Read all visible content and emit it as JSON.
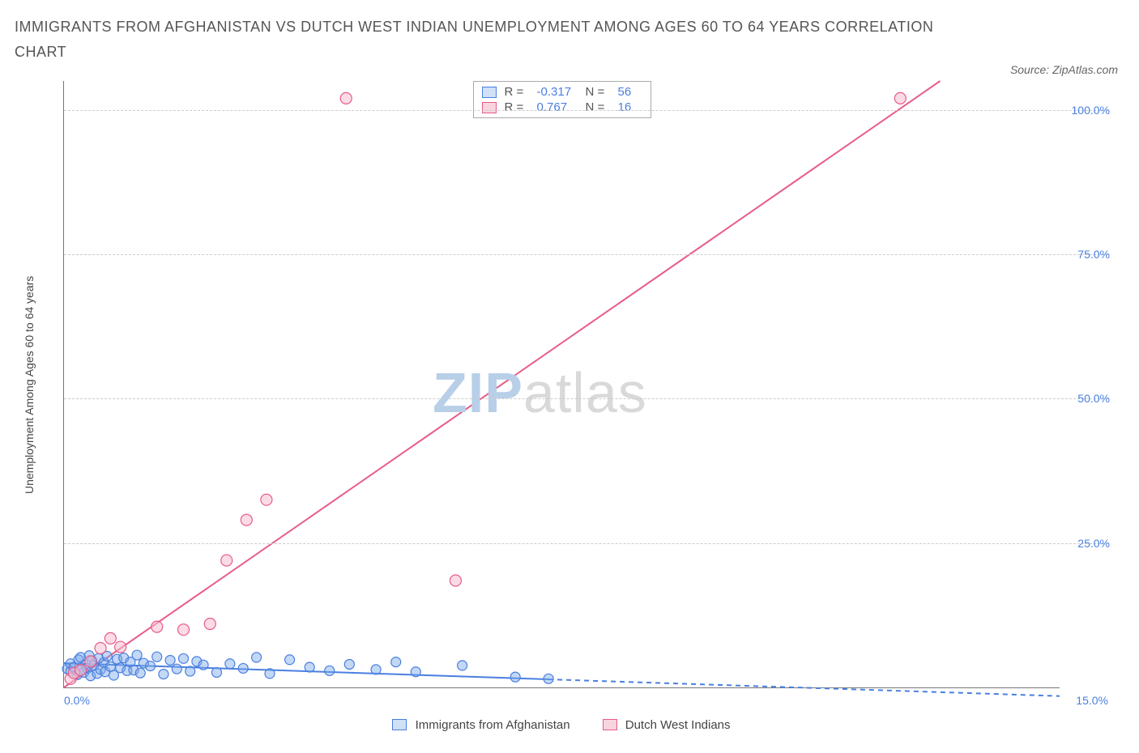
{
  "title": "IMMIGRANTS FROM AFGHANISTAN VS DUTCH WEST INDIAN UNEMPLOYMENT AMONG AGES 60 TO 64 YEARS CORRELATION CHART",
  "source_label": "Source: ZipAtlas.com",
  "y_axis_label": "Unemployment Among Ages 60 to 64 years",
  "watermark": {
    "part1": "ZIP",
    "part2": "atlas"
  },
  "chart": {
    "type": "scatter",
    "background_color": "#ffffff",
    "grid_color": "#cccccc",
    "axis_color": "#777777",
    "tick_label_color": "#4a7fe0",
    "xlim": [
      0,
      15
    ],
    "ylim": [
      0,
      105
    ],
    "x_tick_left": "0.0%",
    "x_tick_right": "15.0%",
    "y_right_ticks": [
      {
        "value": 25,
        "label": "25.0%"
      },
      {
        "value": 50,
        "label": "50.0%"
      },
      {
        "value": 75,
        "label": "75.0%"
      },
      {
        "value": 100,
        "label": "100.0%"
      }
    ],
    "legend_top": {
      "r_label": "R =",
      "n_label": "N =",
      "rows": [
        {
          "fill": "#cfe0f7",
          "border": "#4a7fe0",
          "r": "-0.317",
          "n": "56"
        },
        {
          "fill": "#f8d4de",
          "border": "#e85b8a",
          "r": "0.767",
          "n": "16"
        }
      ]
    },
    "legend_bottom": [
      {
        "fill": "#cfe0f7",
        "border": "#4a7fe0",
        "label": "Immigrants from Afghanistan"
      },
      {
        "fill": "#f8d4de",
        "border": "#e85b8a",
        "label": "Dutch West Indians"
      }
    ],
    "series": [
      {
        "name": "Immigrants from Afghanistan",
        "color": "#4a7fe0",
        "fill": "rgba(122,168,232,0.45)",
        "marker_radius": 6,
        "trend": {
          "x1": 0,
          "y1": 4.2,
          "x2": 7.3,
          "y2": 1.4,
          "solid": true,
          "dash_x2": 15,
          "dash_y2": -1.5
        },
        "points": [
          [
            0.05,
            3.2
          ],
          [
            0.1,
            2.8
          ],
          [
            0.1,
            4.1
          ],
          [
            0.15,
            3.5
          ],
          [
            0.2,
            2.2
          ],
          [
            0.22,
            4.8
          ],
          [
            0.25,
            3.0
          ],
          [
            0.25,
            5.2
          ],
          [
            0.3,
            2.6
          ],
          [
            0.32,
            4.0
          ],
          [
            0.35,
            3.3
          ],
          [
            0.38,
            5.5
          ],
          [
            0.4,
            2.0
          ],
          [
            0.42,
            4.6
          ],
          [
            0.45,
            3.8
          ],
          [
            0.5,
            2.4
          ],
          [
            0.52,
            5.0
          ],
          [
            0.55,
            3.1
          ],
          [
            0.6,
            4.3
          ],
          [
            0.62,
            2.7
          ],
          [
            0.65,
            5.4
          ],
          [
            0.7,
            3.6
          ],
          [
            0.75,
            2.1
          ],
          [
            0.8,
            4.9
          ],
          [
            0.85,
            3.4
          ],
          [
            0.9,
            5.1
          ],
          [
            0.95,
            2.9
          ],
          [
            1.0,
            4.4
          ],
          [
            1.05,
            3.0
          ],
          [
            1.1,
            5.6
          ],
          [
            1.15,
            2.5
          ],
          [
            1.2,
            4.2
          ],
          [
            1.3,
            3.7
          ],
          [
            1.4,
            5.3
          ],
          [
            1.5,
            2.3
          ],
          [
            1.6,
            4.7
          ],
          [
            1.7,
            3.2
          ],
          [
            1.8,
            5.0
          ],
          [
            1.9,
            2.8
          ],
          [
            2.0,
            4.5
          ],
          [
            2.1,
            3.9
          ],
          [
            2.3,
            2.6
          ],
          [
            2.5,
            4.1
          ],
          [
            2.7,
            3.3
          ],
          [
            2.9,
            5.2
          ],
          [
            3.1,
            2.4
          ],
          [
            3.4,
            4.8
          ],
          [
            3.7,
            3.5
          ],
          [
            4.0,
            2.9
          ],
          [
            4.3,
            4.0
          ],
          [
            4.7,
            3.1
          ],
          [
            5.0,
            4.4
          ],
          [
            5.3,
            2.7
          ],
          [
            6.0,
            3.8
          ],
          [
            6.8,
            1.8
          ],
          [
            7.3,
            1.5
          ]
        ]
      },
      {
        "name": "Dutch West Indians",
        "color": "#e85b8a",
        "fill": "rgba(248,190,208,0.55)",
        "marker_radius": 7,
        "trend": {
          "x1": 0,
          "y1": 0,
          "x2": 13.2,
          "y2": 105,
          "solid": true
        },
        "points": [
          [
            0.1,
            1.5
          ],
          [
            0.15,
            2.5
          ],
          [
            0.25,
            3.0
          ],
          [
            0.4,
            4.5
          ],
          [
            0.55,
            6.8
          ],
          [
            0.7,
            8.5
          ],
          [
            0.85,
            7.0
          ],
          [
            1.4,
            10.5
          ],
          [
            1.8,
            10.0
          ],
          [
            2.2,
            11.0
          ],
          [
            2.45,
            22.0
          ],
          [
            2.75,
            29.0
          ],
          [
            3.05,
            32.5
          ],
          [
            4.25,
            102.0
          ],
          [
            5.9,
            18.5
          ],
          [
            12.6,
            102.0
          ]
        ]
      }
    ]
  }
}
